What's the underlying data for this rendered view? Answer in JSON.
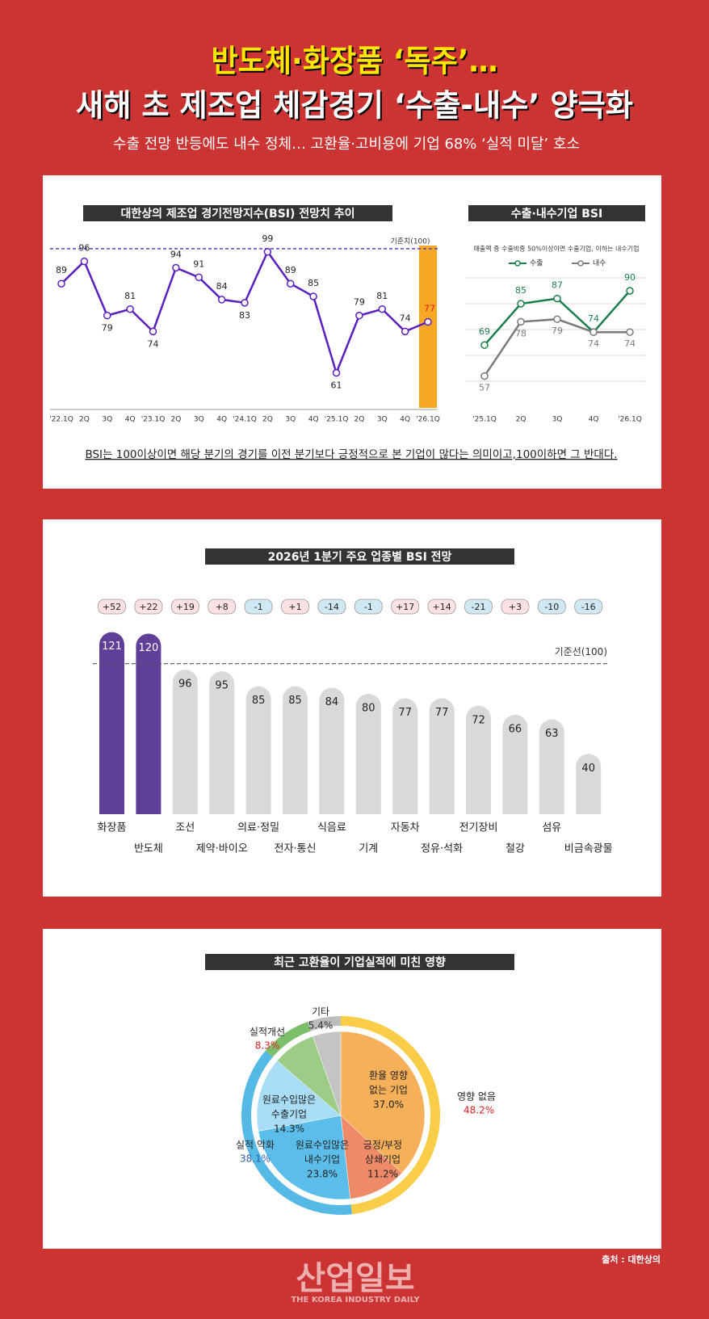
{
  "header": {
    "title_line1": "반도체·화장품 ‘독주’…",
    "title_line2": "새해 초 제조업 체감경기 ‘수출-내수’ 양극화",
    "subtitle": "수출 전망 반등에도 내수 정체… 고환율·고비용에 기업 68% ‘실적 미달’ 호소"
  },
  "chart_data": [
    {
      "type": "line",
      "title": "대한상의 제조업 경기전망지수(BSI) 전망치 추이",
      "categories": [
        "'22.1Q",
        "2Q",
        "3Q",
        "4Q",
        "'23.1Q",
        "2Q",
        "3Q",
        "4Q",
        "'24.1Q",
        "2Q",
        "3Q",
        "4Q",
        "'25.1Q",
        "2Q",
        "3Q",
        "4Q",
        "'26.1Q"
      ],
      "series": [
        {
          "color": "#5a1fc0",
          "values": [
            89,
            96,
            79,
            81,
            74,
            94,
            91,
            84,
            83,
            99,
            89,
            85,
            61,
            79,
            81,
            74,
            77
          ]
        }
      ],
      "reference": {
        "value": 100,
        "label": "기준치(100)",
        "color": "#5a3fd0"
      },
      "highlight_color": "#f7a823",
      "ylim": [
        50,
        103
      ],
      "note": "BSI는 100이상이면 해당 분기의 경기를 이전 분기보다 긍정적으로 본 기업이 많다는 의미이고,100이하면 그 반대다."
    },
    {
      "type": "line",
      "title": "수출·내수기업 BSI",
      "subtitle": "매출액 중 수출비중 50%이상이면 수출기업, 이하는 내수기업",
      "categories": [
        "'25.1Q",
        "2Q",
        "3Q",
        "4Q",
        "'26.1Q"
      ],
      "series": [
        {
          "name": "수출",
          "color": "#1a7f4e",
          "values": [
            69,
            85,
            87,
            74,
            90
          ]
        },
        {
          "name": "내수",
          "color": "#7a7a7a",
          "values": [
            57,
            78,
            79,
            74,
            74
          ]
        }
      ],
      "ylim": [
        50,
        100
      ],
      "grid": true
    },
    {
      "type": "bar",
      "title": "2026년 1분기 주요 업종별 BSI 전망",
      "categories": [
        "화장품",
        "반도체",
        "조선",
        "제약·바이오",
        "의료·정밀",
        "전자·통신",
        "식음료",
        "기계",
        "자동차",
        "정유·석화",
        "전기장비",
        "철강",
        "섬유",
        "비금속광물"
      ],
      "values": [
        121,
        120,
        96,
        95,
        85,
        85,
        84,
        80,
        77,
        77,
        72,
        66,
        63,
        40
      ],
      "changes": [
        52,
        22,
        19,
        8,
        -1,
        1,
        -14,
        -1,
        17,
        14,
        -21,
        3,
        -10,
        -16
      ],
      "change_labels": [
        "+52",
        "+22",
        "+19",
        "+8",
        "-1",
        "+1",
        "-14",
        "-1",
        "+17",
        "+14",
        "-21",
        "+3",
        "-10",
        "-16"
      ],
      "change_colors": {
        "up": "#fde1e3",
        "down": "#cfe8f3"
      },
      "reference": {
        "value": 100,
        "label": "기준선(100)"
      },
      "color": "#d9d9d9",
      "highlight_color": "#5f3f98",
      "ylim": [
        0,
        124
      ]
    },
    {
      "type": "pie",
      "title": "최근 고환율이 기업실적에 미친 영향",
      "groups": [
        {
          "name": "영향 없음",
          "value": 48.2,
          "value_label": "48.2%",
          "ring_color": "#f9cd48",
          "label_color": "#e02020",
          "parts": [
            {
              "label": [
                "환율 영향",
                "없는 기업"
              ],
              "value": 37.0,
              "value_label": "37.0%",
              "color": "#f6b05a"
            },
            {
              "label": [
                "긍정/부정",
                "상쇄기업"
              ],
              "value": 11.2,
              "value_label": "11.2%",
              "color": "#ef8a68"
            }
          ]
        },
        {
          "name": "실적 악화",
          "value": 38.1,
          "value_label": "38.1%",
          "ring_color": "#55b9e6",
          "label_color": "#2f5db8",
          "parts": [
            {
              "label": [
                "원료수입많은",
                "내수기업"
              ],
              "value": 23.8,
              "value_label": "23.8%",
              "color": "#5bbde9"
            },
            {
              "label": [
                "원료수입많은",
                "수출기업"
              ],
              "value": 14.3,
              "value_label": "14.3%",
              "color": "#a9dcf5"
            }
          ]
        },
        {
          "name": "실적개선",
          "value": 8.3,
          "value_label": "8.3%",
          "ring_color": "#7bbf6a",
          "label_color": "#e02020",
          "color": "#9ccc86"
        },
        {
          "name": "기타",
          "value": 5.4,
          "value_label": "5.4%",
          "ring_color": "#bdbdbd",
          "label_color": "#333333",
          "color": "#c4c4c4"
        }
      ]
    }
  ],
  "footer": {
    "source": "출처 : 대한상의",
    "logo": "산업일보",
    "logo_sub": "THE KOREA INDUSTRY DAILY"
  }
}
